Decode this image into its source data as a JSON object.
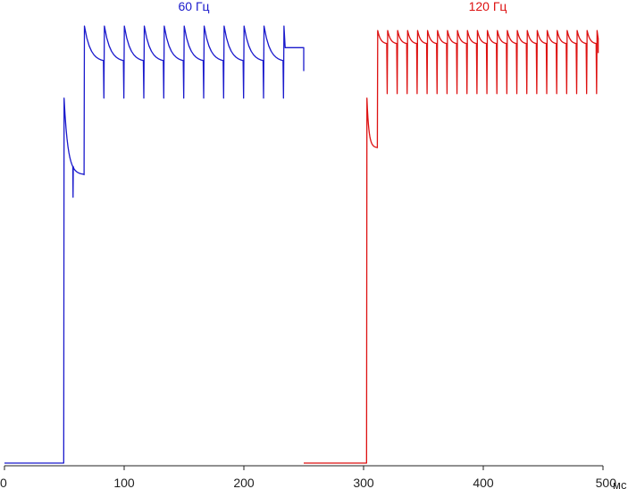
{
  "chart_data": {
    "type": "line",
    "title": "",
    "xlabel": "мс",
    "ylabel": "",
    "xlim": [
      0,
      500
    ],
    "ylim": [
      0,
      1
    ],
    "x_ticks": [
      "0",
      "100",
      "200",
      "300",
      "400",
      "500"
    ],
    "x_tick_values": [
      0,
      100,
      200,
      300,
      400,
      500
    ],
    "grid": false,
    "legend": "series names printed above each trace",
    "series": [
      {
        "name": "60 Гц",
        "color": "#1a1acc",
        "x_range": [
          0,
          250
        ],
        "baseline": 0.0,
        "step_on_ms": 49.5,
        "initial_peak": 0.81,
        "initial_plateau": 0.64,
        "initial_end_ms": 66,
        "second_step_ms": 66.5,
        "high_level": 0.97,
        "high_low": 0.89,
        "dip_level": 0.81,
        "period_ms": 16.67,
        "end_ms": 250
      },
      {
        "name": "120 Гц",
        "color": "#dd1111",
        "x_range": [
          250,
          500
        ],
        "baseline": 0.0,
        "step_on_ms": 302.5,
        "initial_peak": 0.81,
        "initial_plateau": 0.7,
        "initial_end_ms": 311,
        "second_step_ms": 311.5,
        "high_level": 0.96,
        "high_low": 0.93,
        "dip_level": 0.82,
        "period_ms": 8.33,
        "end_ms": 496
      }
    ]
  }
}
